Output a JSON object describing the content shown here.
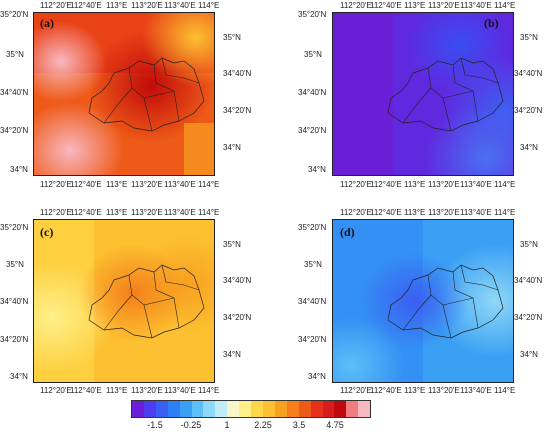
{
  "panels": [
    {
      "id": "a",
      "tag": "(a)",
      "top_labels": [
        "112°20'E",
        "112°40'E",
        "113°E",
        "113°20'E",
        "113°40'E",
        "114°E"
      ],
      "bottom_labels": [
        "112°20'E",
        "112°40'E",
        "113°E",
        "113°20'E",
        "113°40'E",
        "114°E"
      ],
      "left_labels": [
        "35°20'N",
        "35°N",
        "34°40'N",
        "34°20'N",
        "34°N"
      ],
      "right_labels": [
        "35°N",
        "34°40'N",
        "34°20'N",
        "34°N"
      ]
    },
    {
      "id": "b",
      "tag": "(b)",
      "top_labels": [
        "112°20'E",
        "112°40'E",
        "113°E",
        "113°20'E",
        "113°40'E",
        "114°E"
      ],
      "bottom_labels": [
        "112°20'E",
        "112°40'E",
        "113°E",
        "113°20'E",
        "113°40'E",
        "114°E"
      ],
      "left_labels": [
        "35°20'N",
        "35°N",
        "34°40'N",
        "34°20'N",
        "34°N"
      ],
      "right_labels": [
        "35°N",
        "34°40'N",
        "34°20'N",
        "34°N"
      ]
    },
    {
      "id": "c",
      "tag": "(c)",
      "top_labels": [
        "112°20'E",
        "112°40'E",
        "113°E",
        "113°20'E",
        "113°40'E",
        "114°E"
      ],
      "bottom_labels": [
        "112°20'E",
        "112°40'E",
        "113°E",
        "113°20'E",
        "113°40'E",
        "114°E"
      ],
      "left_labels": [
        "35°20'N",
        "35°N",
        "34°40'N",
        "34°20'N",
        "34°N"
      ],
      "right_labels": [
        "35°N",
        "34°40'N",
        "34°20'N",
        "34°N"
      ]
    },
    {
      "id": "d",
      "tag": "(d)",
      "top_labels": [
        "112°20'E",
        "112°40'E",
        "113°E",
        "113°20'E",
        "113°40'E",
        "114°E"
      ],
      "bottom_labels": [
        "112°20'E",
        "112°40'E",
        "113°E",
        "113°20'E",
        "113°40'E",
        "114°E"
      ],
      "left_labels": [
        "35°20'N",
        "35°N",
        "34°40'N",
        "34°20'N",
        "34°N"
      ],
      "right_labels": [
        "35°N",
        "34°40'N",
        "34°20'N",
        "34°N"
      ]
    }
  ],
  "colorbar": {
    "colors": [
      "#6a1fd6",
      "#4a3ef0",
      "#3a5ef2",
      "#2e7ff4",
      "#3aa0f4",
      "#5cc0f6",
      "#8fd8f6",
      "#c0ecf8",
      "#f6f6c6",
      "#fff08a",
      "#ffd84a",
      "#fcc030",
      "#f8a020",
      "#f47e1a",
      "#ee5a18",
      "#e63218",
      "#d81c1c",
      "#c00a0a",
      "#f07c80",
      "#f8b8c0"
    ],
    "tick_labels": [
      "-1.5",
      "-0.25",
      "1",
      "2.25",
      "3.5",
      "4.75"
    ],
    "tick_fractions": [
      0.1,
      0.25,
      0.4,
      0.55,
      0.7,
      0.85
    ]
  }
}
